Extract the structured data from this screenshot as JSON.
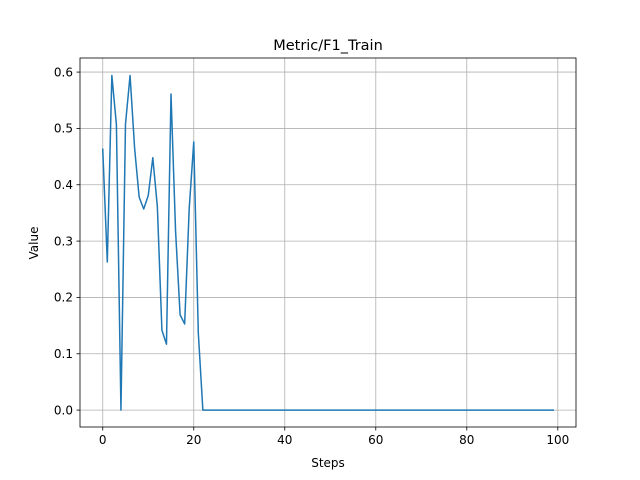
{
  "chart_data": {
    "type": "line",
    "title": "Metric/F1_Train",
    "xlabel": "Steps",
    "ylabel": "Value",
    "xlim": [
      -5,
      104
    ],
    "ylim": [
      -0.03,
      0.625
    ],
    "xticks": [
      0,
      20,
      40,
      60,
      80,
      100
    ],
    "yticks": [
      0.0,
      0.1,
      0.2,
      0.3,
      0.4,
      0.5,
      0.6
    ],
    "xtick_labels": [
      "0",
      "20",
      "40",
      "60",
      "80",
      "100"
    ],
    "ytick_labels": [
      "0.0",
      "0.1",
      "0.2",
      "0.3",
      "0.4",
      "0.5",
      "0.6"
    ],
    "grid": true,
    "colors": {
      "line": "#1f77b4",
      "grid": "#b0b0b0",
      "axes": "#000000"
    },
    "series": [
      {
        "x": [
          0,
          1,
          2,
          3,
          4,
          5,
          6,
          7,
          8,
          9,
          10,
          11,
          12,
          13,
          14,
          15,
          16,
          17,
          18,
          19,
          20,
          21,
          22,
          99
        ],
        "values": [
          0.463,
          0.263,
          0.594,
          0.507,
          0.0,
          0.508,
          0.594,
          0.465,
          0.378,
          0.357,
          0.381,
          0.448,
          0.361,
          0.142,
          0.117,
          0.561,
          0.318,
          0.169,
          0.153,
          0.358,
          0.476,
          0.137,
          0.0,
          0.0
        ]
      }
    ]
  }
}
